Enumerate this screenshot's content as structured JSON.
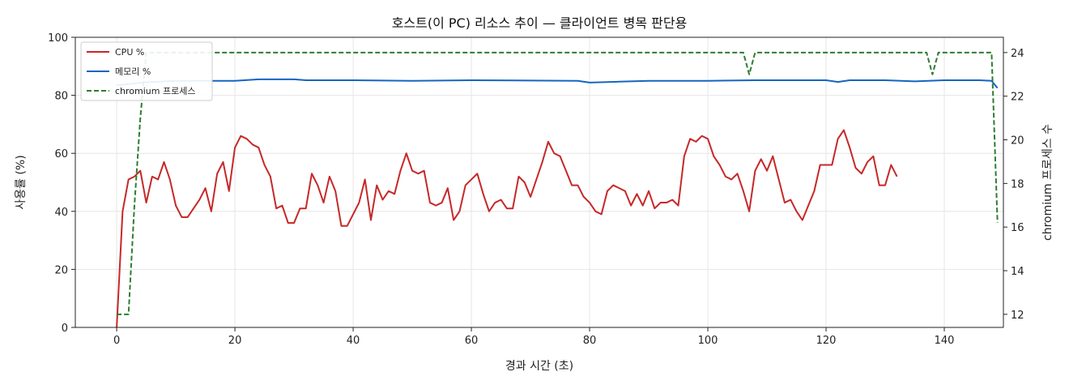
{
  "chart_data": {
    "type": "line",
    "title": "호스트(이 PC) 리소스 추이 — 클라이언트 병목 판단용",
    "xlabel": "경과 시간 (초)",
    "ylabel": "사용률 (%)",
    "y2label": "chromium 프로세스 수",
    "xlim": [
      -7,
      150
    ],
    "ylim": [
      0,
      100
    ],
    "y2lim": [
      11.4,
      24.7
    ],
    "x_ticks": [
      0,
      20,
      40,
      60,
      80,
      100,
      120,
      140
    ],
    "y_ticks": [
      0,
      20,
      40,
      60,
      80,
      100
    ],
    "y2_ticks": [
      12,
      14,
      16,
      18,
      20,
      22,
      24
    ],
    "grid": true,
    "legend_position": "top-left",
    "series": [
      {
        "name": "CPU %",
        "axis": "left",
        "color": "#c62828",
        "style": "solid",
        "points": [
          [
            0,
            0
          ],
          [
            1,
            40
          ],
          [
            2,
            51
          ],
          [
            3,
            52
          ],
          [
            4,
            54
          ],
          [
            5,
            43
          ],
          [
            6,
            52
          ],
          [
            7,
            51
          ],
          [
            8,
            57
          ],
          [
            9,
            51
          ],
          [
            10,
            42
          ],
          [
            11,
            38
          ],
          [
            12,
            38
          ],
          [
            13,
            41
          ],
          [
            14,
            44
          ],
          [
            15,
            48
          ],
          [
            16,
            40
          ],
          [
            17,
            53
          ],
          [
            18,
            57
          ],
          [
            19,
            47
          ],
          [
            20,
            62
          ],
          [
            21,
            66
          ],
          [
            22,
            65
          ],
          [
            23,
            63
          ],
          [
            24,
            62
          ],
          [
            25,
            56
          ],
          [
            26,
            52
          ],
          [
            27,
            41
          ],
          [
            28,
            42
          ],
          [
            29,
            36
          ],
          [
            30,
            36
          ],
          [
            31,
            41
          ],
          [
            32,
            41
          ],
          [
            33,
            53
          ],
          [
            34,
            49
          ],
          [
            35,
            43
          ],
          [
            36,
            52
          ],
          [
            37,
            47
          ],
          [
            38,
            35
          ],
          [
            39,
            35
          ],
          [
            40,
            39
          ],
          [
            41,
            43
          ],
          [
            42,
            51
          ],
          [
            43,
            37
          ],
          [
            44,
            49
          ],
          [
            45,
            44
          ],
          [
            46,
            47
          ],
          [
            47,
            46
          ],
          [
            48,
            54
          ],
          [
            49,
            60
          ],
          [
            50,
            54
          ],
          [
            51,
            53
          ],
          [
            52,
            54
          ],
          [
            53,
            43
          ],
          [
            54,
            42
          ],
          [
            55,
            43
          ],
          [
            56,
            48
          ],
          [
            57,
            37
          ],
          [
            58,
            40
          ],
          [
            59,
            49
          ],
          [
            60,
            51
          ],
          [
            61,
            53
          ],
          [
            62,
            46
          ],
          [
            63,
            40
          ],
          [
            64,
            43
          ],
          [
            65,
            44
          ],
          [
            66,
            41
          ],
          [
            67,
            41
          ],
          [
            68,
            52
          ],
          [
            69,
            50
          ],
          [
            70,
            45
          ],
          [
            71,
            51
          ],
          [
            72,
            57
          ],
          [
            73,
            64
          ],
          [
            74,
            60
          ],
          [
            75,
            59
          ],
          [
            76,
            54
          ],
          [
            77,
            49
          ],
          [
            78,
            49
          ],
          [
            79,
            45
          ],
          [
            80,
            43
          ],
          [
            81,
            40
          ],
          [
            82,
            39
          ],
          [
            83,
            47
          ],
          [
            84,
            49
          ],
          [
            85,
            48
          ],
          [
            86,
            47
          ],
          [
            87,
            42
          ],
          [
            88,
            46
          ],
          [
            89,
            42
          ],
          [
            90,
            47
          ],
          [
            91,
            41
          ],
          [
            92,
            43
          ],
          [
            93,
            43
          ],
          [
            94,
            44
          ],
          [
            95,
            42
          ],
          [
            96,
            59
          ],
          [
            97,
            65
          ],
          [
            98,
            64
          ],
          [
            99,
            66
          ],
          [
            100,
            65
          ],
          [
            101,
            59
          ],
          [
            102,
            56
          ],
          [
            103,
            52
          ],
          [
            104,
            51
          ],
          [
            105,
            53
          ],
          [
            106,
            47
          ],
          [
            107,
            40
          ],
          [
            108,
            54
          ],
          [
            109,
            58
          ],
          [
            110,
            54
          ],
          [
            111,
            59
          ],
          [
            112,
            51
          ],
          [
            113,
            43
          ],
          [
            114,
            44
          ],
          [
            115,
            40
          ],
          [
            116,
            37
          ],
          [
            117,
            42
          ],
          [
            118,
            47
          ],
          [
            119,
            56
          ],
          [
            120,
            56
          ],
          [
            121,
            56
          ],
          [
            122,
            65
          ],
          [
            123,
            68
          ],
          [
            124,
            62
          ],
          [
            125,
            55
          ],
          [
            126,
            53
          ],
          [
            127,
            57
          ],
          [
            128,
            59
          ],
          [
            129,
            49
          ],
          [
            130,
            49
          ],
          [
            131,
            56
          ],
          [
            132,
            52
          ]
        ]
      },
      {
        "name": "메모리 %",
        "axis": "left",
        "color": "#1565c0",
        "style": "solid",
        "points": [
          [
            0,
            83.5
          ],
          [
            5,
            84.5
          ],
          [
            10,
            85
          ],
          [
            20,
            85
          ],
          [
            24,
            85.5
          ],
          [
            30,
            85.5
          ],
          [
            32,
            85.2
          ],
          [
            40,
            85.2
          ],
          [
            50,
            85
          ],
          [
            60,
            85.2
          ],
          [
            70,
            85.1
          ],
          [
            78,
            85
          ],
          [
            80,
            84.4
          ],
          [
            85,
            84.7
          ],
          [
            90,
            85
          ],
          [
            100,
            85
          ],
          [
            108,
            85.2
          ],
          [
            113,
            85.2
          ],
          [
            120,
            85.2
          ],
          [
            122,
            84.6
          ],
          [
            124,
            85.2
          ],
          [
            130,
            85.2
          ],
          [
            135,
            84.8
          ],
          [
            140,
            85.2
          ],
          [
            146,
            85.2
          ],
          [
            148,
            85
          ],
          [
            149,
            82.5
          ]
        ]
      },
      {
        "name": "chromium 프로세스",
        "axis": "right",
        "color": "#2e7d32",
        "style": "dashed",
        "points": [
          [
            0,
            12
          ],
          [
            2,
            12
          ],
          [
            3,
            17
          ],
          [
            4,
            21
          ],
          [
            5,
            24
          ],
          [
            106,
            24
          ],
          [
            107,
            23
          ],
          [
            108,
            24
          ],
          [
            137,
            24
          ],
          [
            138,
            23
          ],
          [
            139,
            24
          ],
          [
            148,
            24
          ],
          [
            149,
            16.2
          ]
        ]
      }
    ]
  }
}
